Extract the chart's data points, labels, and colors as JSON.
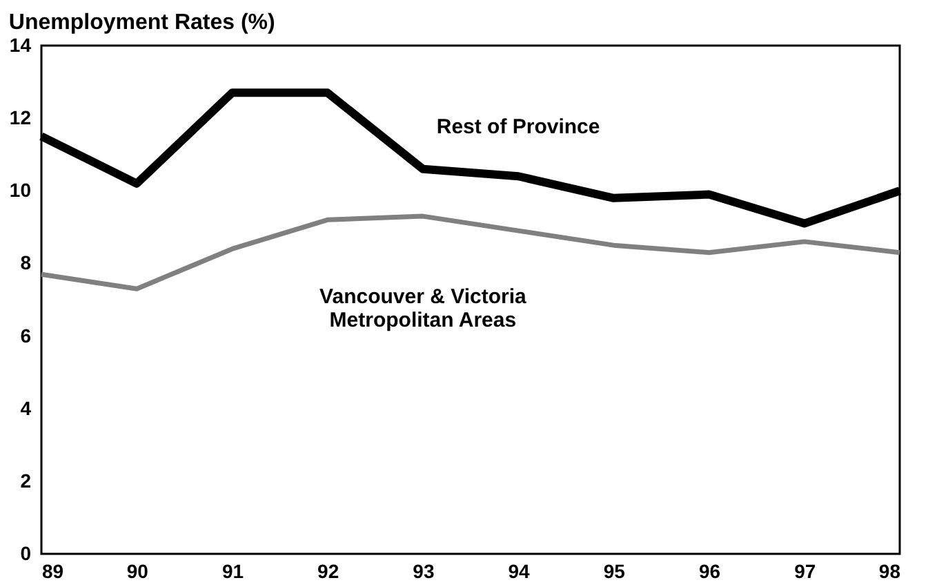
{
  "chart_data": {
    "type": "line",
    "title": "Unemployment Rates (%)",
    "x": [
      89,
      90,
      91,
      92,
      93,
      94,
      95,
      96,
      97,
      98
    ],
    "series": [
      {
        "name": "Rest of Province",
        "color": "#000000",
        "values": [
          11.5,
          10.2,
          12.7,
          12.7,
          10.6,
          10.4,
          9.8,
          9.9,
          9.1,
          10.0
        ]
      },
      {
        "name": "Vancouver & Victoria\nMetropolitan Areas",
        "color": "#808080",
        "values": [
          7.7,
          7.3,
          8.4,
          9.2,
          9.3,
          8.9,
          8.5,
          8.3,
          8.6,
          8.3
        ]
      }
    ],
    "xlim": [
      89,
      98
    ],
    "xticks": [
      89,
      90,
      91,
      92,
      93,
      94,
      95,
      96,
      97,
      98
    ],
    "ylim": [
      0,
      14
    ],
    "yticks": [
      0,
      2,
      4,
      6,
      8,
      10,
      12,
      14
    ],
    "grid": false,
    "legend": false,
    "marker": "none",
    "line_style": "solid"
  }
}
